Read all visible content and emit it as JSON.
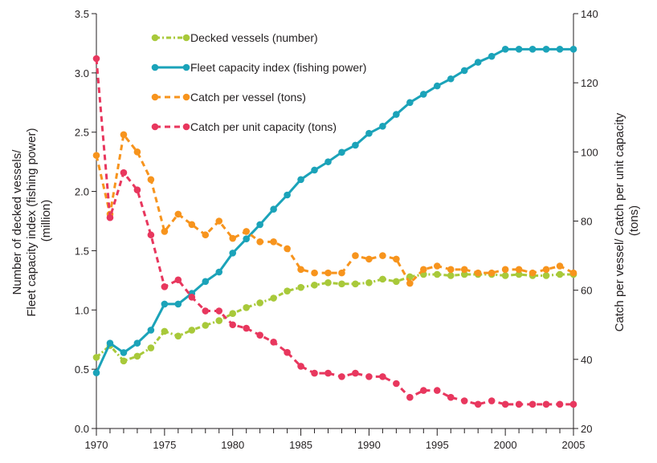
{
  "chart_data": {
    "type": "line",
    "x": [
      1970,
      1971,
      1972,
      1973,
      1974,
      1975,
      1976,
      1977,
      1978,
      1979,
      1980,
      1981,
      1982,
      1983,
      1984,
      1985,
      1986,
      1987,
      1988,
      1989,
      1990,
      1991,
      1992,
      1993,
      1994,
      1995,
      1996,
      1997,
      1998,
      1999,
      2000,
      2001,
      2002,
      2003,
      2004,
      2005
    ],
    "x_ticks": [
      "1970",
      "1975",
      "1980",
      "1985",
      "1990",
      "1995",
      "2000",
      "2005"
    ],
    "xlim": [
      1970,
      2005
    ],
    "y_left": {
      "label_lines": [
        "Number of decked vessels/",
        "Fleet capacity index (fishing power)",
        "(million)"
      ],
      "ylim": [
        0,
        3.5
      ],
      "ticks": [
        "0.0",
        "0.5",
        "1.0",
        "1.5",
        "2.0",
        "2.5",
        "3.0",
        "3.5"
      ]
    },
    "y_right": {
      "label_lines": [
        "Catch per vessel/ Catch per unit capacity",
        "(tons)"
      ],
      "ylim": [
        20,
        140
      ],
      "ticks": [
        "20",
        "40",
        "60",
        "80",
        "100",
        "120",
        "140"
      ]
    },
    "series": [
      {
        "name": "Decked vessels (number)",
        "axis": "left",
        "color": "#a8c93a",
        "style": "dash-dot",
        "values": [
          0.6,
          0.7,
          0.57,
          0.61,
          0.68,
          0.82,
          0.78,
          0.83,
          0.87,
          0.91,
          0.97,
          1.02,
          1.06,
          1.1,
          1.16,
          1.19,
          1.21,
          1.23,
          1.22,
          1.22,
          1.23,
          1.26,
          1.24,
          1.28,
          1.3,
          1.3,
          1.29,
          1.3,
          1.3,
          1.3,
          1.29,
          1.3,
          1.29,
          1.29,
          1.3,
          1.3
        ]
      },
      {
        "name": "Fleet capacity index (fishing power)",
        "axis": "left",
        "color": "#1ba3b9",
        "style": "solid",
        "values": [
          0.47,
          0.72,
          0.64,
          0.72,
          0.83,
          1.05,
          1.05,
          1.14,
          1.24,
          1.32,
          1.48,
          1.6,
          1.72,
          1.85,
          1.97,
          2.1,
          2.18,
          2.25,
          2.33,
          2.39,
          2.49,
          2.55,
          2.65,
          2.75,
          2.82,
          2.89,
          2.95,
          3.02,
          3.09,
          3.14,
          3.2,
          3.2,
          3.2,
          3.2,
          3.2,
          3.2
        ]
      },
      {
        "name": "Catch per vessel (tons)",
        "axis": "right",
        "color": "#f7941d",
        "style": "dash",
        "values": [
          99,
          82,
          105,
          100,
          92,
          77,
          82,
          79,
          76,
          80,
          75,
          77,
          74,
          74,
          72,
          66,
          65,
          65,
          65,
          70,
          69,
          70,
          69,
          62,
          66,
          67,
          66,
          66,
          65,
          65,
          66,
          66,
          65,
          66,
          67,
          65
        ]
      },
      {
        "name": "Catch per unit capacity (tons)",
        "axis": "right",
        "color": "#e8375e",
        "style": "dash",
        "values": [
          127,
          81,
          94,
          89,
          76,
          61,
          63,
          58,
          54,
          54,
          50,
          49,
          47,
          45,
          42,
          38,
          36,
          36,
          35,
          36,
          35,
          35,
          33,
          29,
          31,
          31,
          29,
          28,
          27,
          28,
          27,
          27,
          27,
          27,
          27,
          27
        ]
      }
    ],
    "grid": false,
    "legend_position": "top-left"
  }
}
